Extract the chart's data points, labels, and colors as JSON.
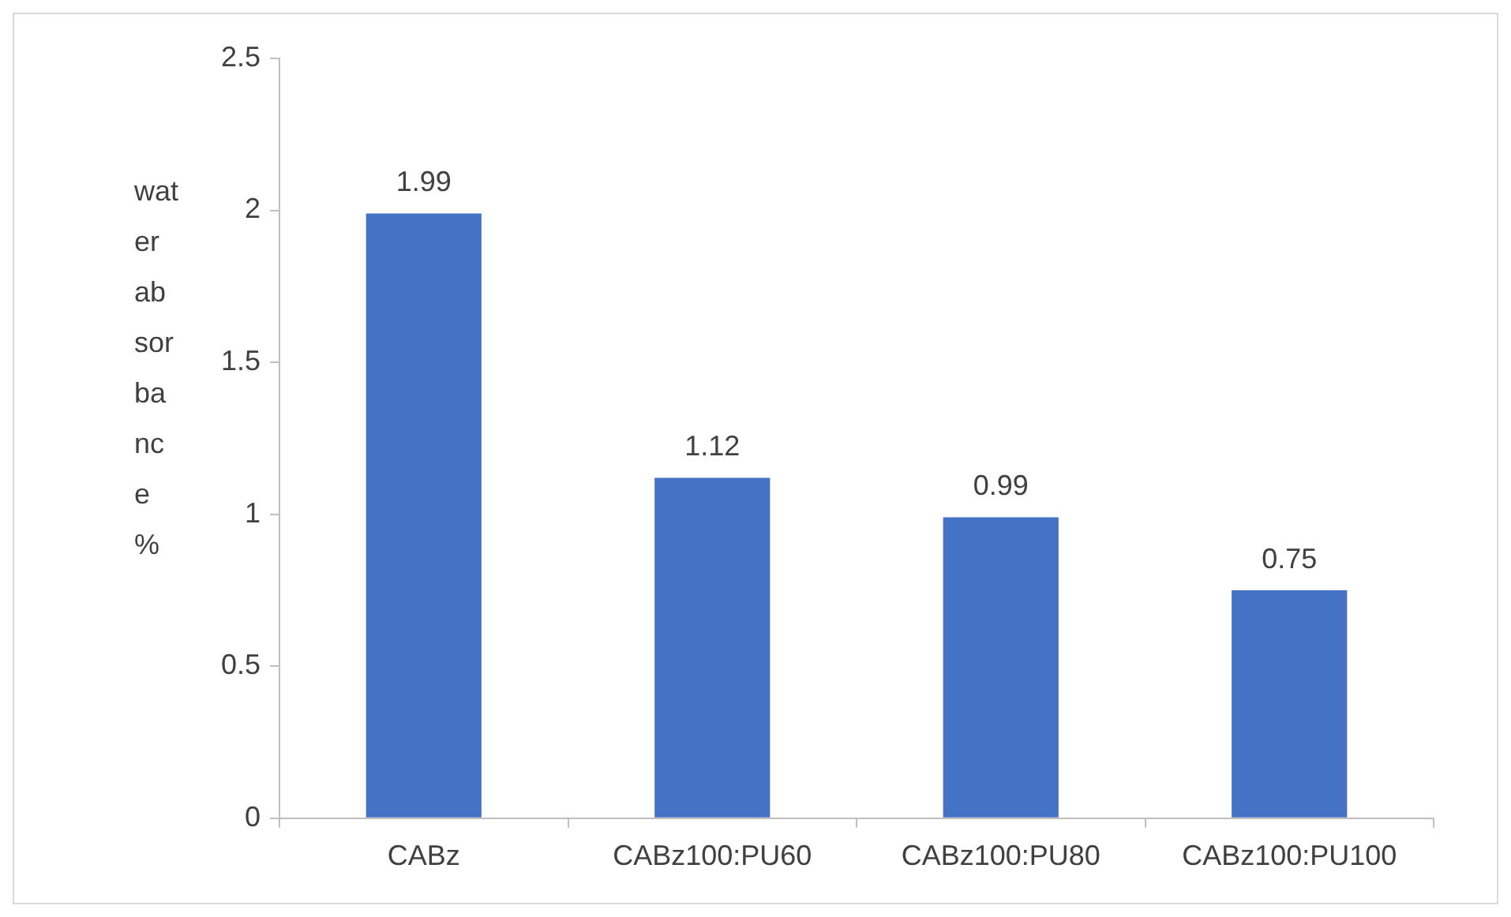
{
  "chart_data": {
    "type": "bar",
    "ylabel": "water absorbance %",
    "categories": [
      "CABz",
      "CABz100:PU60",
      "CABz100:PU80",
      "CABz100:PU100"
    ],
    "values": [
      1.99,
      1.12,
      0.99,
      0.75
    ],
    "color": "#4472c4",
    "ylim": [
      0,
      2.5
    ],
    "yticks": [
      0,
      0.5,
      1,
      1.5,
      2,
      2.5
    ],
    "grid": false,
    "legend": false,
    "data_labels": true
  }
}
